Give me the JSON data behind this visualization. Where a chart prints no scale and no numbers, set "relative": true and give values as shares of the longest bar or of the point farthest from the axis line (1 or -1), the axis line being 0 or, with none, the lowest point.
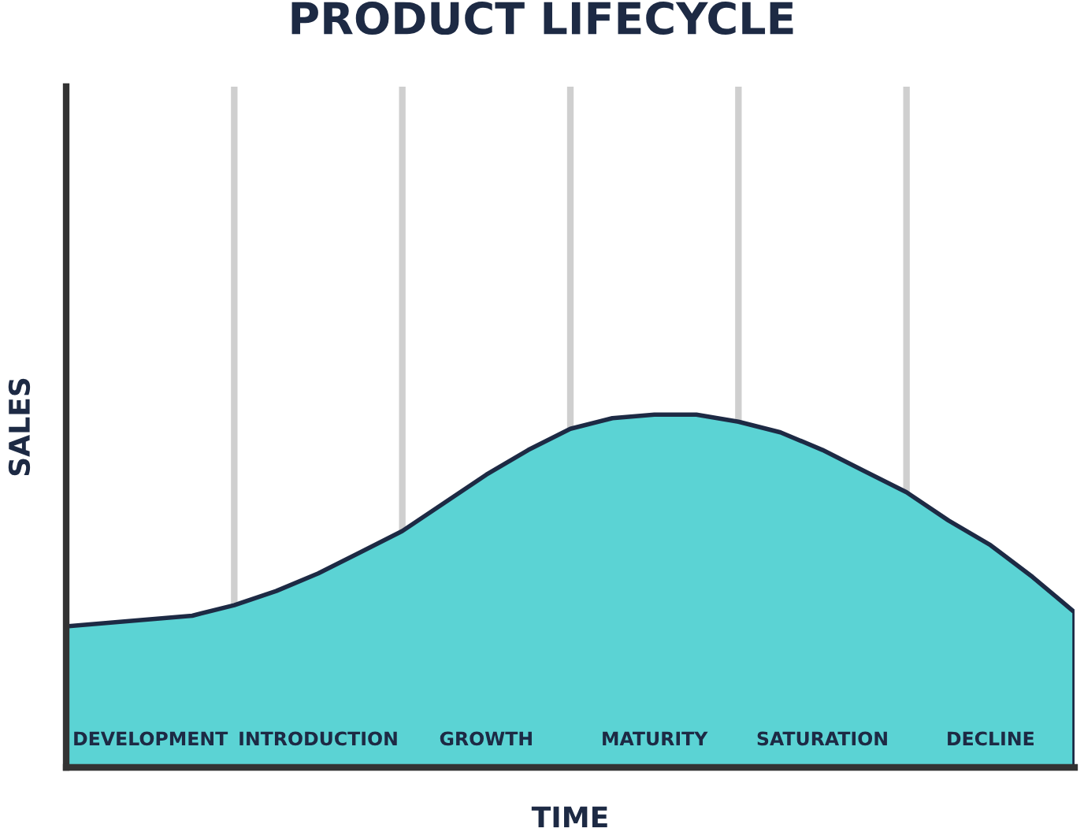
{
  "chart_data": {
    "type": "area",
    "title": "PRODUCT LIFECYCLE",
    "xlabel": "TIME",
    "ylabel": "SALES",
    "relative": true,
    "categories": [
      null,
      null,
      null,
      null,
      null,
      null,
      null,
      null,
      null,
      null,
      null,
      null,
      null,
      null,
      null,
      null,
      null,
      null,
      null,
      null,
      null,
      null,
      null,
      null,
      null
    ],
    "series": [
      {
        "color": "#5bd3d4",
        "values": [
          0.4,
          0.41,
          0.42,
          0.43,
          0.46,
          0.5,
          0.55,
          0.61,
          0.67,
          0.75,
          0.83,
          0.9,
          0.96,
          0.99,
          1,
          1,
          0.98,
          0.95,
          0.9,
          0.84,
          0.78,
          0.7,
          0.63,
          0.54,
          0.44
        ]
      }
    ],
    "grid": "x",
    "annotations": [
      "DEVELOPMENT",
      "INTRODUCTION",
      "GROWTH",
      "MATURITY",
      "SATURATION",
      "DECLINE"
    ]
  }
}
